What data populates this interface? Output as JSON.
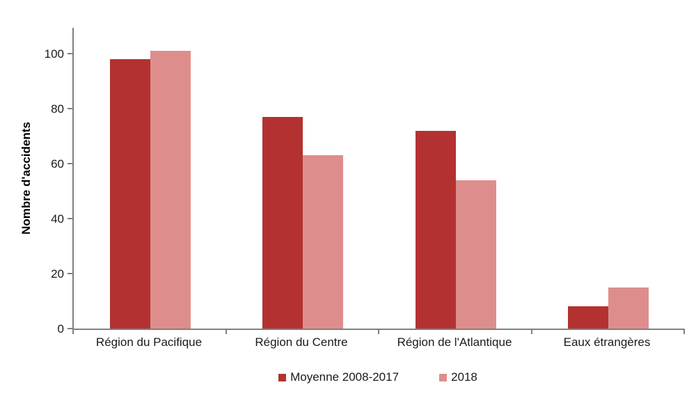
{
  "chart_data": {
    "type": "bar",
    "title": "",
    "xlabel": "",
    "ylabel": "Nombre d'accidents",
    "categories": [
      "Région du Pacifique",
      "Région du Centre",
      "Région de l'Atlantique",
      "Eaux étrangères"
    ],
    "series": [
      {
        "name": "Moyenne 2008-2017",
        "color": "#b33231",
        "values": [
          98,
          77,
          72,
          8
        ]
      },
      {
        "name": "2018",
        "color": "#dd8e8c",
        "values": [
          101,
          63,
          54,
          15
        ]
      }
    ],
    "yticks": [
      0,
      20,
      40,
      60,
      80,
      100
    ],
    "ylim": [
      0,
      109.4
    ],
    "grid": false,
    "legend_position": "bottom-center",
    "axis_color": "#808080",
    "background_color": "#ffffff"
  }
}
